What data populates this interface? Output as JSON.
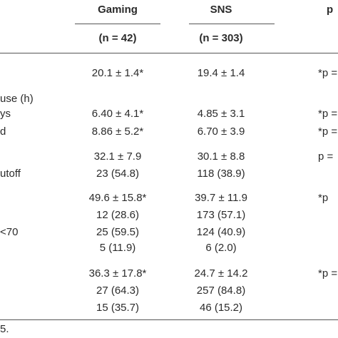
{
  "header": {
    "gaming": "Gaming",
    "sns": "SNS",
    "p": "p",
    "gaming_n": "(n = 42)",
    "sns_n": "(n = 303)"
  },
  "table": {
    "rows": [
      {
        "gaming": "20.1 ± 1.4*",
        "sns": "19.4 ± 1.4",
        "p": "*p ="
      },
      {
        "label": "use (h)"
      },
      {
        "label": "ys",
        "gaming": "6.40 ± 4.1*",
        "sns": "4.85 ± 3.1",
        "p": "*p ="
      },
      {
        "label": "d",
        "gaming": "8.86 ± 5.2*",
        "sns": "6.70 ± 3.9",
        "p": "*p ="
      },
      {
        "gaming": "32.1 ± 7.9",
        "sns": "30.1 ± 8.8",
        "p": "p ="
      },
      {
        "label": "utoff",
        "gaming": "23 (54.8)",
        "sns": "118 (38.9)"
      },
      {
        "gaming": "49.6 ± 15.8*",
        "sns": "39.7 ± 11.9",
        "p": "*p"
      },
      {
        "gaming": "12 (28.6)",
        "sns": "173 (57.1)"
      },
      {
        "label": "<70",
        "gaming": "25 (59.5)",
        "sns": "124 (40.9)"
      },
      {
        "gaming": "5 (11.9)",
        "sns": "6 (2.0)"
      },
      {
        "gaming": "36.3 ± 17.8*",
        "sns": "24.7 ± 14.2",
        "p": "*p ="
      },
      {
        "gaming": "27 (64.3)",
        "sns": "257 (84.8)"
      },
      {
        "gaming": "15 (35.7)",
        "sns": "46 (15.2)"
      }
    ]
  },
  "footnote": "5."
}
